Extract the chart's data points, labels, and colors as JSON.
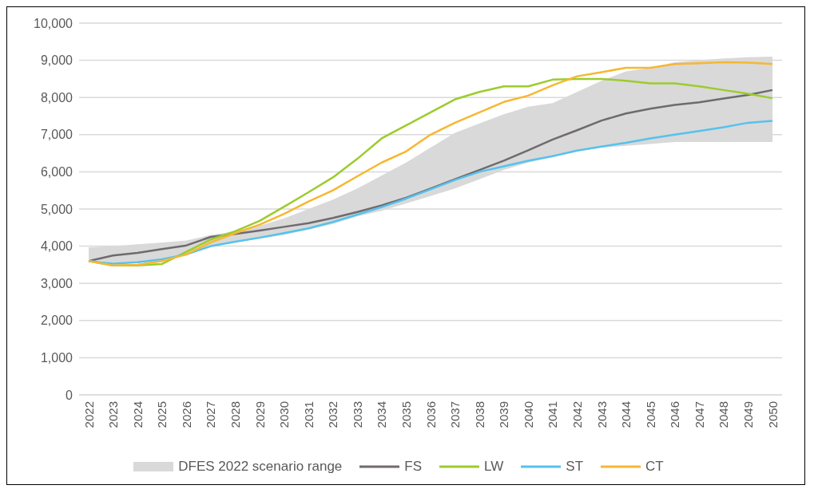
{
  "chart_data": {
    "type": "line",
    "categories": [
      "2022",
      "2023",
      "2024",
      "2025",
      "2026",
      "2027",
      "2028",
      "2029",
      "2030",
      "2031",
      "2032",
      "2033",
      "2034",
      "2035",
      "2036",
      "2037",
      "2038",
      "2039",
      "2040",
      "2041",
      "2042",
      "2043",
      "2044",
      "2045",
      "2046",
      "2047",
      "2048",
      "2049",
      "2050"
    ],
    "ylim": [
      0,
      10000
    ],
    "yticks": [
      {
        "value": 0,
        "label": "0"
      },
      {
        "value": 1000,
        "label": "1,000"
      },
      {
        "value": 2000,
        "label": "2,000"
      },
      {
        "value": 3000,
        "label": "3,000"
      },
      {
        "value": 4000,
        "label": "4,000"
      },
      {
        "value": 5000,
        "label": "5,000"
      },
      {
        "value": 6000,
        "label": "6,000"
      },
      {
        "value": 7000,
        "label": "7,000"
      },
      {
        "value": 8000,
        "label": "8,000"
      },
      {
        "value": 9000,
        "label": "9,000"
      },
      {
        "value": 10000,
        "label": "10,000"
      }
    ],
    "grid": "y",
    "legend": "bottom",
    "marker": "none",
    "line_style": "solid",
    "series": [
      {
        "name": "DFES 2022 scenario range",
        "type": "area",
        "color": "#d9d9d9",
        "values": [
          null,
          null,
          null,
          null,
          null,
          null,
          null,
          null,
          null,
          null,
          null,
          null,
          null,
          null,
          null,
          null,
          null,
          null,
          null,
          null,
          null,
          null,
          null,
          null,
          null,
          null,
          null,
          null,
          null
        ],
        "lower": [
          3650,
          3550,
          3550,
          3600,
          3750,
          4000,
          4100,
          4200,
          4300,
          4450,
          4600,
          4800,
          4950,
          5150,
          5350,
          5550,
          5800,
          6050,
          6250,
          6400,
          6550,
          6650,
          6700,
          6750,
          6800,
          6800,
          6800,
          6800,
          6800
        ],
        "upper": [
          3970,
          4000,
          4050,
          4100,
          4150,
          4300,
          4400,
          4550,
          4750,
          5000,
          5250,
          5550,
          5900,
          6250,
          6650,
          7050,
          7300,
          7550,
          7750,
          7850,
          8150,
          8450,
          8700,
          8800,
          8950,
          9000,
          9050,
          9080,
          9100
        ]
      },
      {
        "name": "FS",
        "color": "#6f6a6e",
        "values": [
          3600,
          3750,
          3820,
          3920,
          4020,
          4250,
          4330,
          4420,
          4520,
          4620,
          4760,
          4920,
          5100,
          5300,
          5550,
          5800,
          6050,
          6300,
          6580,
          6870,
          7120,
          7380,
          7570,
          7700,
          7800,
          7870,
          7970,
          8070,
          8200
        ]
      },
      {
        "name": "LW",
        "color": "#9ccc2c",
        "values": [
          3600,
          3480,
          3480,
          3520,
          3850,
          4180,
          4400,
          4680,
          5060,
          5450,
          5850,
          6350,
          6900,
          7250,
          7600,
          7950,
          8150,
          8300,
          8300,
          8480,
          8500,
          8500,
          8450,
          8380,
          8380,
          8300,
          8200,
          8100,
          7980
        ]
      },
      {
        "name": "ST",
        "color": "#55c2ee",
        "values": [
          3600,
          3530,
          3570,
          3650,
          3780,
          4000,
          4120,
          4230,
          4350,
          4480,
          4650,
          4850,
          5050,
          5280,
          5530,
          5780,
          6000,
          6150,
          6300,
          6420,
          6570,
          6680,
          6780,
          6900,
          7000,
          7100,
          7200,
          7320,
          7370
        ]
      },
      {
        "name": "CT",
        "color": "#f7b731",
        "values": [
          3600,
          3480,
          3500,
          3600,
          3780,
          4100,
          4350,
          4580,
          4870,
          5200,
          5500,
          5880,
          6250,
          6550,
          7000,
          7320,
          7600,
          7880,
          8050,
          8330,
          8570,
          8680,
          8800,
          8800,
          8900,
          8920,
          8950,
          8940,
          8900
        ]
      }
    ]
  }
}
